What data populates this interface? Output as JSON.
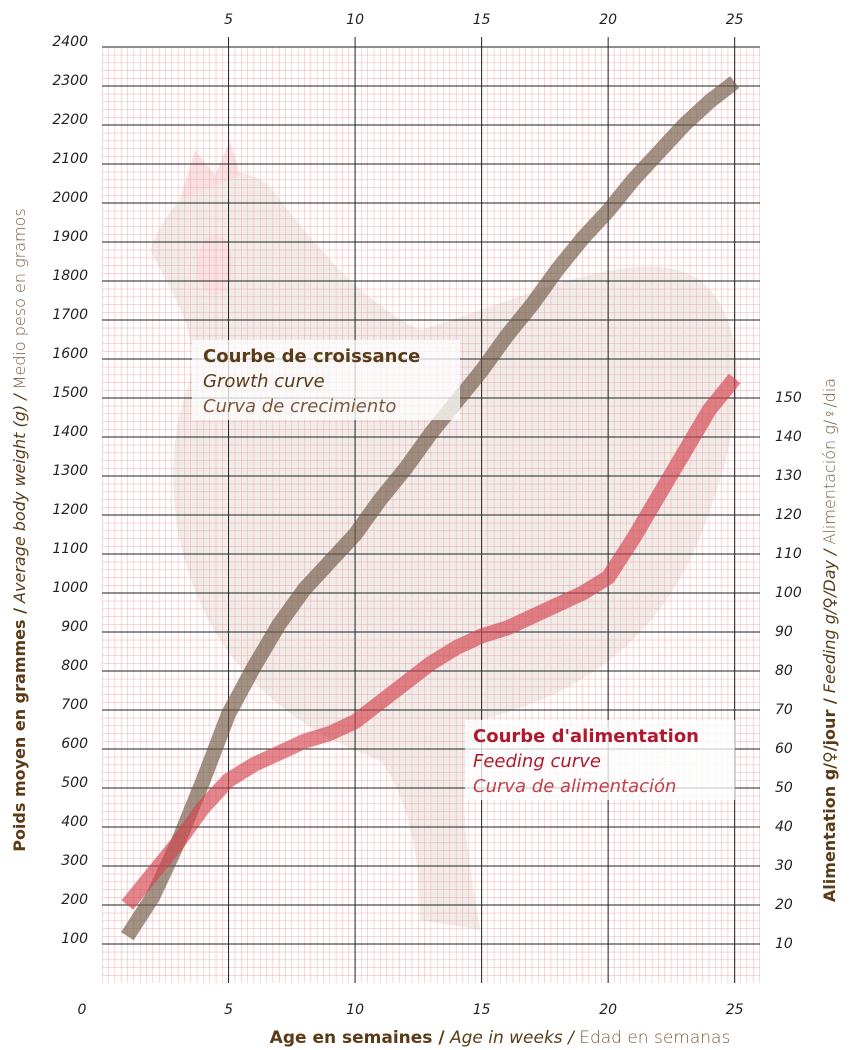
{
  "chart_data": {
    "type": "line",
    "x": [
      1,
      2,
      3,
      4,
      5,
      6,
      7,
      8,
      9,
      10,
      11,
      12,
      13,
      14,
      15,
      16,
      17,
      18,
      19,
      20,
      21,
      22,
      23,
      24,
      25
    ],
    "xlim": [
      0,
      26
    ],
    "xticks": [
      0,
      5,
      10,
      15,
      20,
      25
    ],
    "ylim": [
      0,
      2400
    ],
    "yticks": [
      100,
      200,
      300,
      400,
      500,
      600,
      700,
      800,
      900,
      1000,
      1100,
      1200,
      1300,
      1400,
      1500,
      1600,
      1700,
      1800,
      1900,
      2000,
      2100,
      2200,
      2300,
      2400
    ],
    "y2lim": [
      0,
      240
    ],
    "y2ticks": [
      10,
      20,
      30,
      40,
      50,
      60,
      70,
      80,
      90,
      100,
      110,
      120,
      130,
      140,
      150
    ],
    "grid": true,
    "x_label": [
      "Age en semaines /",
      "Age in weeks /",
      "Edad en semanas"
    ],
    "y_label": [
      "Poids moyen en grammes /",
      "Average body weight (g) /",
      "Medio peso en gramos"
    ],
    "y2_label": [
      "Alimentation g/♀/jour /",
      "Feeding g/♀/Day /",
      "Alimentación g/♀/dia"
    ],
    "series": [
      {
        "name": "Courbe de croissance",
        "labels": [
          "Growth curve",
          "Curva de crecimiento"
        ],
        "color": "#6e5843",
        "values": [
          120,
          220,
          360,
          520,
          690,
          810,
          920,
          1010,
          1080,
          1150,
          1240,
          1320,
          1410,
          1490,
          1570,
          1660,
          1740,
          1830,
          1910,
          1980,
          2060,
          2130,
          2200,
          2260,
          2310
        ]
      },
      {
        "name": "Courbe d'alimentation",
        "labels": [
          "Feeding curve",
          "Curva de alimentación"
        ],
        "color": "#d2434f",
        "axis": "y2",
        "values": [
          20,
          28,
          36,
          45,
          52,
          56,
          59,
          62,
          64,
          67,
          72,
          77,
          82,
          86,
          89,
          91,
          94,
          97,
          100,
          104,
          114,
          125,
          136,
          147,
          155
        ]
      }
    ]
  }
}
